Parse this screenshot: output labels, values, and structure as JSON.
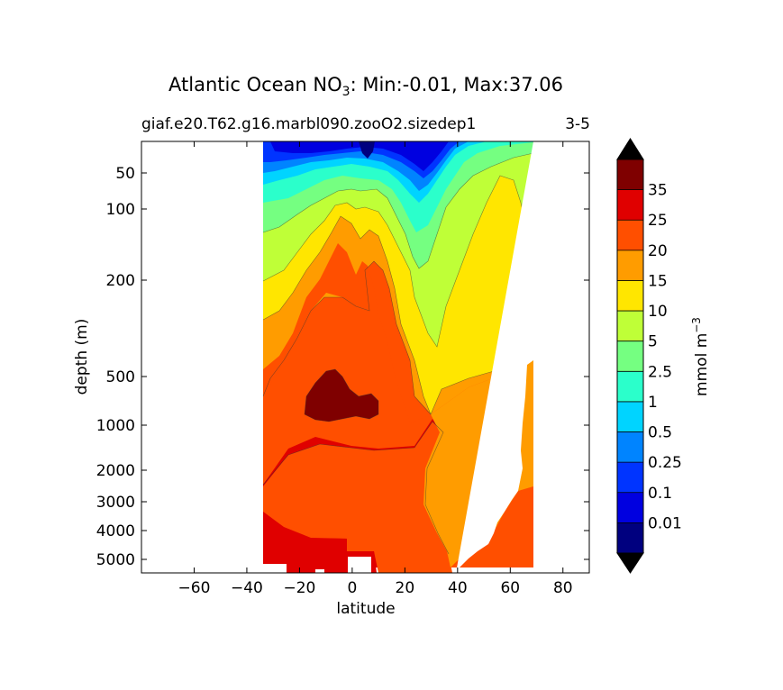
{
  "chart_data": {
    "type": "heatmap",
    "title": "Atlantic Ocean NO",
    "title_subscript": "3",
    "title_suffix": ": Min:-0.01, Max:37.06",
    "subtitle_left": "giaf.e20.T62.g16.marbl090.zooO2.sizedep1",
    "subtitle_right": "3-5",
    "xlabel": "latitude",
    "ylabel": "depth (m)",
    "xlim": [
      -80,
      90
    ],
    "ylim": [
      5500,
      10
    ],
    "y_scale": "depth-stretched (nonlinear)",
    "x_ticks": [
      -60,
      -40,
      -20,
      0,
      20,
      40,
      60,
      80
    ],
    "x_tick_labels": [
      "−60",
      "−40",
      "−20",
      "0",
      "20",
      "40",
      "60",
      "80"
    ],
    "y_ticks": [
      50,
      100,
      200,
      500,
      1000,
      2000,
      3000,
      4000,
      5000
    ],
    "y_tick_labels": [
      "50",
      "100",
      "200",
      "500",
      "1000",
      "2000",
      "3000",
      "4000",
      "5000"
    ],
    "data_lat_range": [
      -34,
      68
    ],
    "colorbar": {
      "label": "mmol m",
      "label_superscript": "−3",
      "levels": [
        "0.01",
        "0.1",
        "0.25",
        "0.5",
        "1",
        "2.5",
        "5",
        "10",
        "15",
        "20",
        "25",
        "35"
      ],
      "colors": [
        "#00007f",
        "#0000e0",
        "#0034ff",
        "#0084ff",
        "#00d4ff",
        "#2bffcb",
        "#75ff81",
        "#bfff37",
        "#ffe600",
        "#ff9c00",
        "#ff4f00",
        "#e00000",
        "#7f0000"
      ],
      "extend": "both"
    },
    "min": -0.01,
    "max": 37.06
  }
}
